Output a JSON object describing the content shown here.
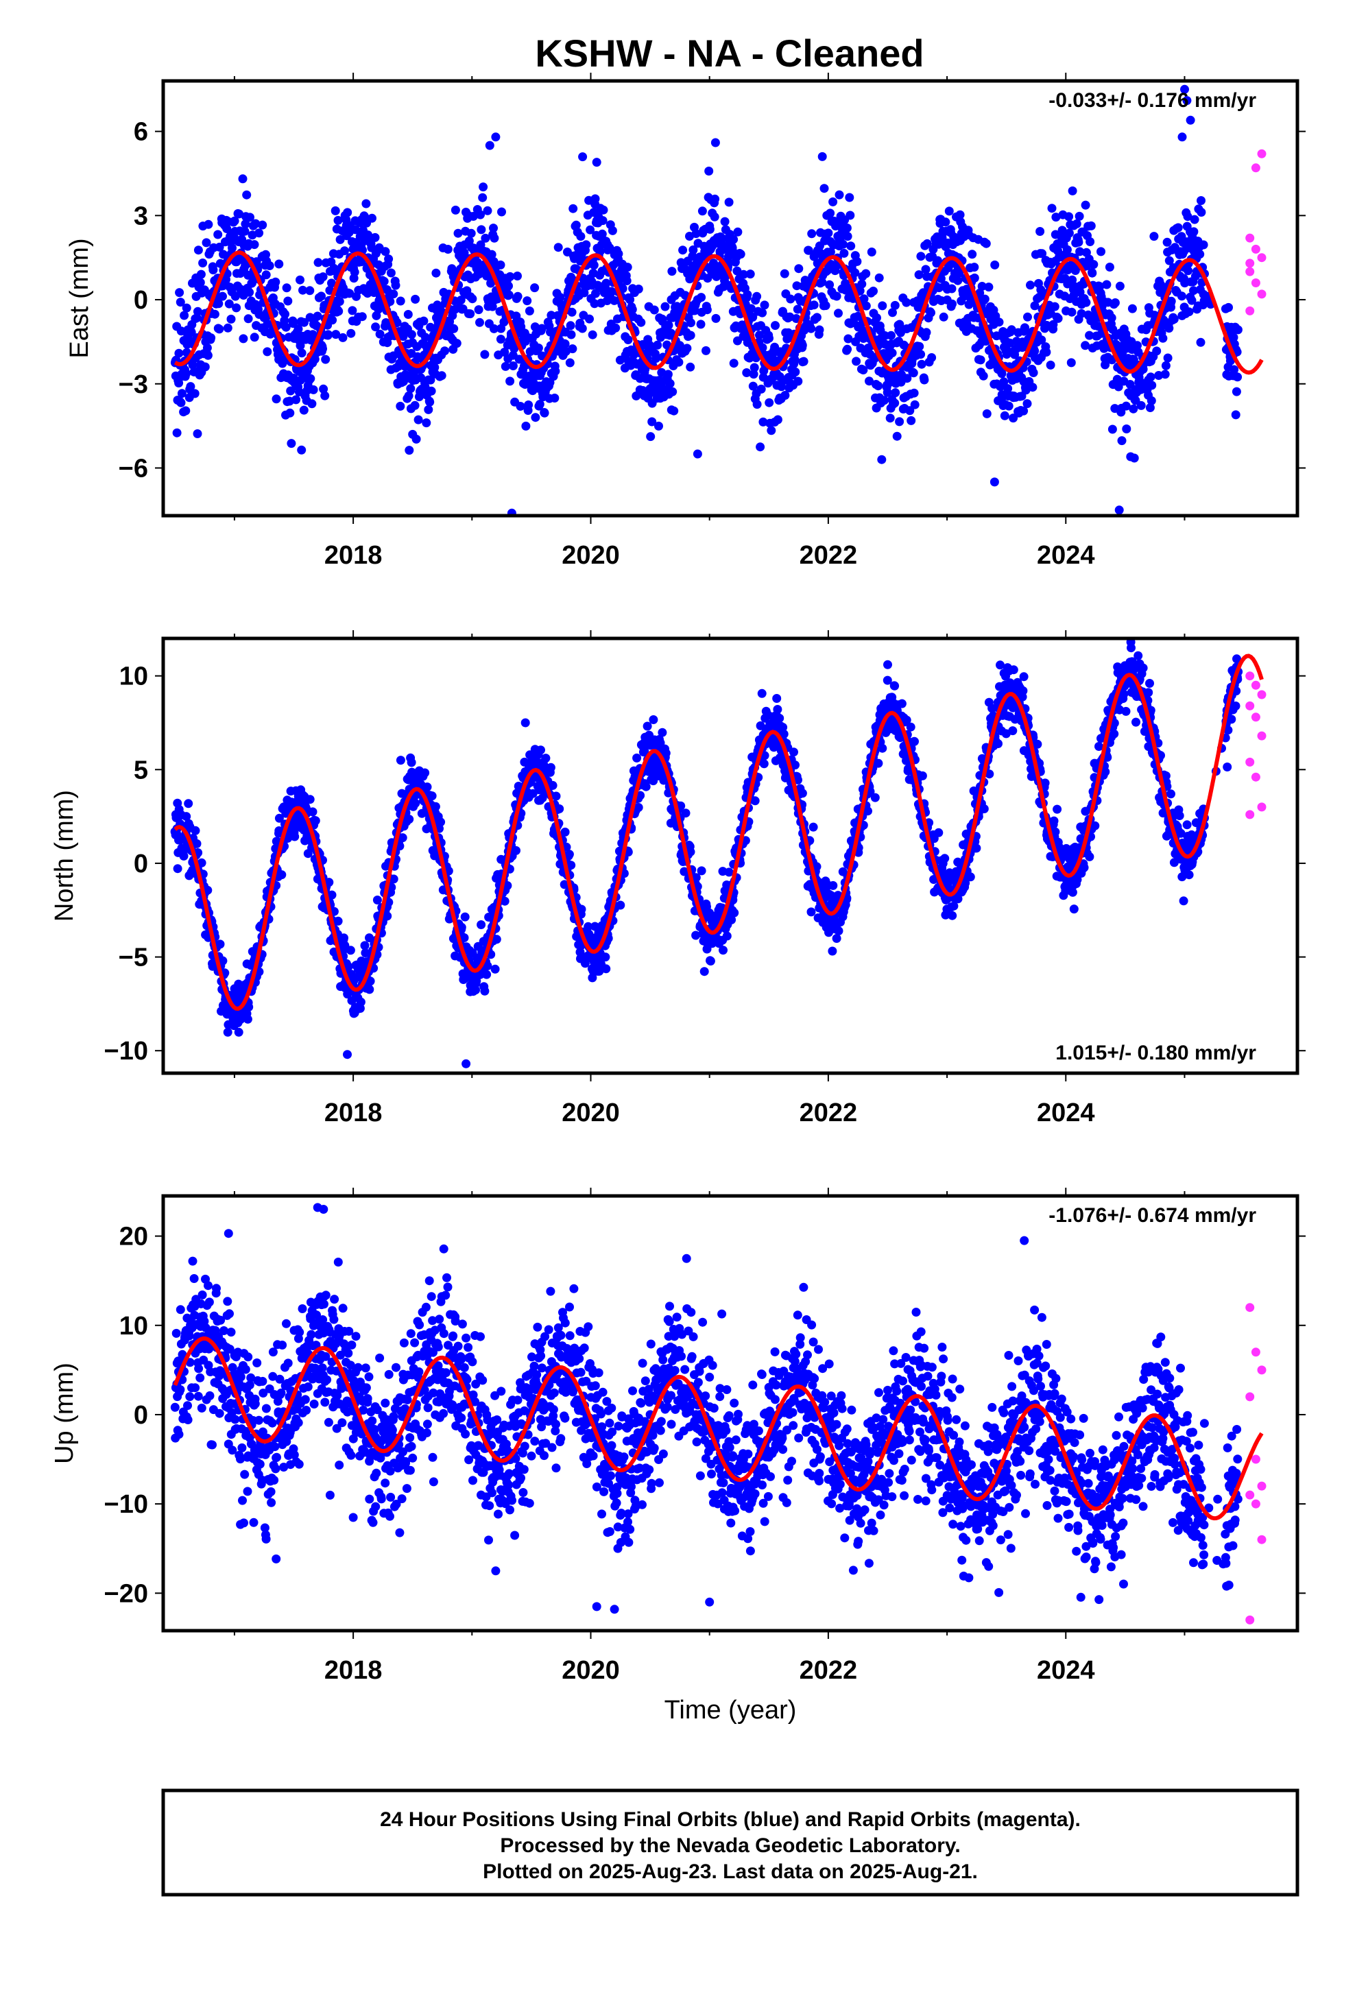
{
  "title": "KSHW  - NA - Cleaned",
  "colors": {
    "final_orbits": "#0000ff",
    "rapid_orbits": "#ff33ff",
    "model": "#ff0000",
    "frame": "#000000"
  },
  "chart_data": [
    {
      "type": "scatter",
      "component": "east",
      "ylabel": "East (mm)",
      "xlabel": "",
      "xlim": [
        2016.4,
        2025.95
      ],
      "ylim": [
        -7.7,
        7.8
      ],
      "x_ticks": [
        2018,
        2020,
        2022,
        2024
      ],
      "y_ticks": [
        -6,
        -3,
        0,
        3,
        6
      ],
      "y_tick_labels": [
        "−6",
        "−3",
        "0",
        "3",
        "6"
      ],
      "rate_label": "-0.033+/- 0.176 mm/yr",
      "rate_position": "top-right",
      "model": {
        "offset": -0.3,
        "rate": -0.033,
        "amplitude": 2.0,
        "phase_year": 2016.79
      },
      "final_scatter_sd": 1.1,
      "final_range": [
        2016.5,
        2025.45
      ],
      "rapid_range": [
        2025.55,
        2025.65
      ],
      "rapid_values": [
        2.2,
        1.8,
        1.5,
        1.0,
        0.6,
        0.2,
        -0.4,
        4.7,
        5.2,
        1.3
      ],
      "outliers": [
        {
          "x": 2025.0,
          "y": 7.5
        },
        {
          "x": 2025.02,
          "y": 7.1
        },
        {
          "x": 2025.05,
          "y": 6.4
        },
        {
          "x": 2024.98,
          "y": 5.8
        },
        {
          "x": 2019.2,
          "y": 5.8
        },
        {
          "x": 2019.15,
          "y": 5.5
        },
        {
          "x": 2020.05,
          "y": 4.9
        },
        {
          "x": 2021.05,
          "y": 5.6
        },
        {
          "x": 2021.95,
          "y": 5.1
        },
        {
          "x": 2024.45,
          "y": -7.5
        },
        {
          "x": 2023.4,
          "y": -6.5
        },
        {
          "x": 2022.45,
          "y": -5.7
        },
        {
          "x": 2018.5,
          "y": -4.8
        },
        {
          "x": 2020.9,
          "y": -5.5
        }
      ]
    },
    {
      "type": "scatter",
      "component": "north",
      "ylabel": "North (mm)",
      "xlabel": "",
      "xlim": [
        2016.4,
        2025.95
      ],
      "ylim": [
        -11.2,
        12.0
      ],
      "x_ticks": [
        2018,
        2020,
        2022,
        2024
      ],
      "y_ticks": [
        -10,
        -5,
        0,
        5,
        10
      ],
      "y_tick_labels": [
        "−10",
        "−5",
        "0",
        "5",
        "10"
      ],
      "rate_label": "1.015+/- 0.180 mm/yr",
      "rate_position": "bottom-right",
      "model": {
        "offset": -3.2,
        "rate": 1.015,
        "amplitude": 5.1,
        "phase_year": 2016.28
      },
      "final_scatter_sd": 0.75,
      "final_range": [
        2016.5,
        2025.45
      ],
      "rapid_range": [
        2025.55,
        2025.65
      ],
      "rapid_values": [
        10.0,
        9.5,
        9.0,
        8.4,
        7.8,
        6.8,
        5.4,
        4.6,
        3.0,
        2.6
      ],
      "outliers": [
        {
          "x": 2024.55,
          "y": 11.5
        },
        {
          "x": 2022.5,
          "y": 10.6
        },
        {
          "x": 2019.45,
          "y": 7.5
        },
        {
          "x": 2018.95,
          "y": -10.7
        },
        {
          "x": 2017.95,
          "y": -10.2
        },
        {
          "x": 2018.4,
          "y": 5.5
        }
      ]
    },
    {
      "type": "scatter",
      "component": "up",
      "ylabel": "Up (mm)",
      "xlabel": "Time (year)",
      "xlim": [
        2016.4,
        2025.95
      ],
      "ylim": [
        -24.2,
        24.5
      ],
      "x_ticks": [
        2018,
        2020,
        2022,
        2024
      ],
      "y_ticks": [
        -20,
        -10,
        0,
        10,
        20
      ],
      "y_tick_labels": [
        "−20",
        "−10",
        "0",
        "10",
        "20"
      ],
      "rate_label": "-1.076+/- 0.674 mm/yr",
      "rate_position": "top-right",
      "model": {
        "offset": 3.3,
        "rate": -1.076,
        "amplitude": 5.5,
        "phase_year": 2016.5
      },
      "final_scatter_sd": 4.0,
      "final_range": [
        2016.5,
        2025.45
      ],
      "rapid_range": [
        2025.55,
        2025.65
      ],
      "rapid_values": [
        12.0,
        7.0,
        5.0,
        2.0,
        -5.0,
        -8.0,
        -9.0,
        -10.0,
        -14.0,
        -23.0
      ],
      "outliers": [
        {
          "x": 2017.7,
          "y": 23.2
        },
        {
          "x": 2017.75,
          "y": 23.0
        },
        {
          "x": 2016.95,
          "y": 20.3
        },
        {
          "x": 2023.65,
          "y": 19.5
        },
        {
          "x": 2020.05,
          "y": -21.5
        },
        {
          "x": 2020.2,
          "y": -21.8
        },
        {
          "x": 2021.0,
          "y": -21.0
        },
        {
          "x": 2019.2,
          "y": -17.5
        },
        {
          "x": 2023.35,
          "y": -17.0
        },
        {
          "x": 2017.05,
          "y": -12.3
        }
      ]
    }
  ],
  "footer": {
    "line1": "24 Hour Positions Using Final Orbits (blue) and Rapid Orbits (magenta).",
    "line2": "Processed by the Nevada Geodetic Laboratory.",
    "line3": "Plotted on 2025-Aug-23. Last data on 2025-Aug-21."
  }
}
